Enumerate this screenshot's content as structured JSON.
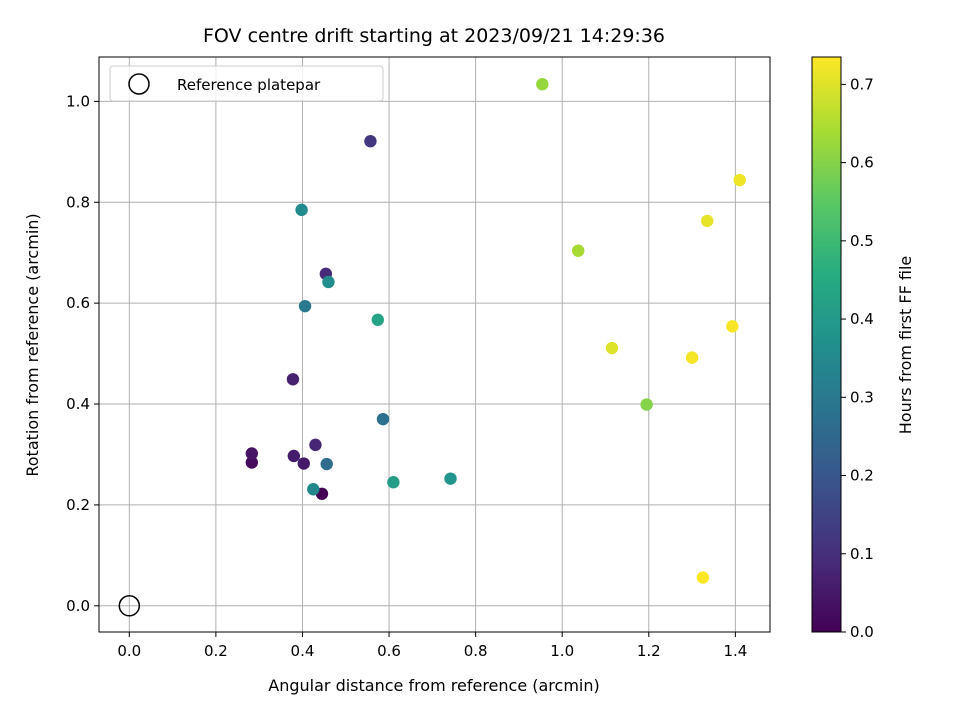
{
  "chart_data": {
    "type": "scatter",
    "title": "FOV centre drift starting at 2023/09/21 14:29:36",
    "xlabel": "Angular distance from reference (arcmin)",
    "ylabel": "Rotation from reference (arcmin)",
    "xlim": [
      -0.07,
      1.48
    ],
    "ylim": [
      -0.052,
      1.088
    ],
    "xticks": [
      0.0,
      0.2,
      0.4,
      0.6,
      0.8,
      1.0,
      1.2,
      1.4
    ],
    "xtick_labels": [
      "0.0",
      "0.2",
      "0.4",
      "0.6",
      "0.8",
      "1.0",
      "1.2",
      "1.4"
    ],
    "yticks": [
      0.0,
      0.2,
      0.4,
      0.6,
      0.8,
      1.0
    ],
    "ytick_labels": [
      "0.0",
      "0.2",
      "0.4",
      "0.6",
      "0.8",
      "1.0"
    ],
    "grid": true,
    "colormap": "viridis",
    "colorbar": {
      "label": "Hours from first FF file",
      "range": [
        0.0,
        0.735
      ],
      "ticks": [
        0.0,
        0.1,
        0.2,
        0.3,
        0.4,
        0.5,
        0.6,
        0.7
      ],
      "tick_labels": [
        "0.0",
        "0.1",
        "0.2",
        "0.3",
        "0.4",
        "0.5",
        "0.6",
        "0.7"
      ]
    },
    "legend": {
      "placement": "upper-left",
      "entries": [
        {
          "label": "Reference platepar",
          "marker": "open-circle"
        }
      ]
    },
    "reference_point": {
      "x": 0.0,
      "y": 0.0,
      "label": "Reference platepar"
    },
    "points": [
      {
        "x": 0.445,
        "y": 0.222,
        "hours": 0.0
      },
      {
        "x": 0.283,
        "y": 0.284,
        "hours": 0.02
      },
      {
        "x": 0.283,
        "y": 0.302,
        "hours": 0.04
      },
      {
        "x": 0.403,
        "y": 0.282,
        "hours": 0.05
      },
      {
        "x": 0.38,
        "y": 0.297,
        "hours": 0.06
      },
      {
        "x": 0.378,
        "y": 0.449,
        "hours": 0.07
      },
      {
        "x": 0.43,
        "y": 0.319,
        "hours": 0.08
      },
      {
        "x": 0.454,
        "y": 0.658,
        "hours": 0.09
      },
      {
        "x": 0.557,
        "y": 0.921,
        "hours": 0.12
      },
      {
        "x": 0.456,
        "y": 0.281,
        "hours": 0.26
      },
      {
        "x": 0.586,
        "y": 0.37,
        "hours": 0.27
      },
      {
        "x": 0.406,
        "y": 0.594,
        "hours": 0.3
      },
      {
        "x": 0.425,
        "y": 0.231,
        "hours": 0.34
      },
      {
        "x": 0.398,
        "y": 0.785,
        "hours": 0.35
      },
      {
        "x": 0.46,
        "y": 0.642,
        "hours": 0.36
      },
      {
        "x": 0.742,
        "y": 0.252,
        "hours": 0.38
      },
      {
        "x": 0.61,
        "y": 0.245,
        "hours": 0.41
      },
      {
        "x": 0.574,
        "y": 0.567,
        "hours": 0.43
      },
      {
        "x": 1.195,
        "y": 0.399,
        "hours": 0.6
      },
      {
        "x": 0.954,
        "y": 1.034,
        "hours": 0.62
      },
      {
        "x": 1.037,
        "y": 0.704,
        "hours": 0.64
      },
      {
        "x": 1.115,
        "y": 0.511,
        "hours": 0.7
      },
      {
        "x": 1.335,
        "y": 0.763,
        "hours": 0.71
      },
      {
        "x": 1.41,
        "y": 0.844,
        "hours": 0.72
      },
      {
        "x": 1.3,
        "y": 0.492,
        "hours": 0.725
      },
      {
        "x": 1.393,
        "y": 0.554,
        "hours": 0.73
      },
      {
        "x": 1.325,
        "y": 0.056,
        "hours": 0.735
      }
    ]
  }
}
